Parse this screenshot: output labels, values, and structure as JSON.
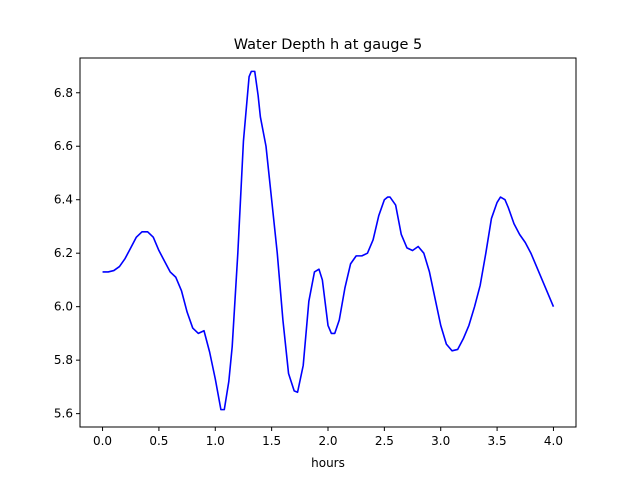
{
  "chart_data": {
    "type": "line",
    "title": "Water Depth h at gauge 5",
    "xlabel": "hours",
    "ylabel": "",
    "xlim": [
      -0.2,
      4.2
    ],
    "ylim": [
      5.55,
      6.93
    ],
    "xticks": [
      0.0,
      0.5,
      1.0,
      1.5,
      2.0,
      2.5,
      3.0,
      3.5,
      4.0
    ],
    "xtick_labels": [
      "0.0",
      "0.5",
      "1.0",
      "1.5",
      "2.0",
      "2.5",
      "3.0",
      "3.5",
      "4.0"
    ],
    "yticks": [
      5.6,
      5.8,
      6.0,
      6.2,
      6.4,
      6.6,
      6.8
    ],
    "ytick_labels": [
      "5.6",
      "5.8",
      "6.0",
      "6.2",
      "6.4",
      "6.6",
      "6.8"
    ],
    "grid": false,
    "line_color": "#0000ff",
    "series": [
      {
        "name": "",
        "x": [
          0.0,
          0.05,
          0.1,
          0.15,
          0.2,
          0.25,
          0.3,
          0.35,
          0.4,
          0.45,
          0.5,
          0.55,
          0.6,
          0.65,
          0.7,
          0.75,
          0.8,
          0.85,
          0.9,
          0.95,
          1.0,
          1.05,
          1.08,
          1.12,
          1.15,
          1.2,
          1.25,
          1.3,
          1.32,
          1.35,
          1.38,
          1.4,
          1.45,
          1.5,
          1.55,
          1.6,
          1.65,
          1.7,
          1.73,
          1.78,
          1.83,
          1.88,
          1.92,
          1.95,
          2.0,
          2.03,
          2.06,
          2.1,
          2.15,
          2.2,
          2.25,
          2.3,
          2.35,
          2.4,
          2.45,
          2.5,
          2.53,
          2.55,
          2.6,
          2.65,
          2.7,
          2.75,
          2.8,
          2.85,
          2.9,
          2.95,
          3.0,
          3.05,
          3.1,
          3.15,
          3.2,
          3.25,
          3.3,
          3.35,
          3.4,
          3.45,
          3.5,
          3.53,
          3.57,
          3.6,
          3.65,
          3.7,
          3.75,
          3.8,
          3.85,
          3.9,
          3.95,
          4.0
        ],
        "y": [
          6.13,
          6.13,
          6.135,
          6.15,
          6.18,
          6.22,
          6.26,
          6.28,
          6.28,
          6.26,
          6.21,
          6.17,
          6.13,
          6.11,
          6.06,
          5.98,
          5.92,
          5.9,
          5.91,
          5.83,
          5.73,
          5.615,
          5.615,
          5.72,
          5.85,
          6.2,
          6.62,
          6.86,
          6.88,
          6.88,
          6.79,
          6.71,
          6.6,
          6.4,
          6.2,
          5.95,
          5.75,
          5.685,
          5.68,
          5.78,
          6.02,
          6.13,
          6.14,
          6.1,
          5.93,
          5.9,
          5.9,
          5.95,
          6.07,
          6.16,
          6.19,
          6.19,
          6.2,
          6.25,
          6.34,
          6.4,
          6.41,
          6.41,
          6.38,
          6.27,
          6.22,
          6.21,
          6.225,
          6.2,
          6.13,
          6.03,
          5.93,
          5.86,
          5.835,
          5.84,
          5.88,
          5.93,
          6.0,
          6.08,
          6.2,
          6.33,
          6.39,
          6.41,
          6.4,
          6.37,
          6.31,
          6.27,
          6.24,
          6.2,
          6.15,
          6.1,
          6.05,
          6.0
        ]
      }
    ]
  }
}
